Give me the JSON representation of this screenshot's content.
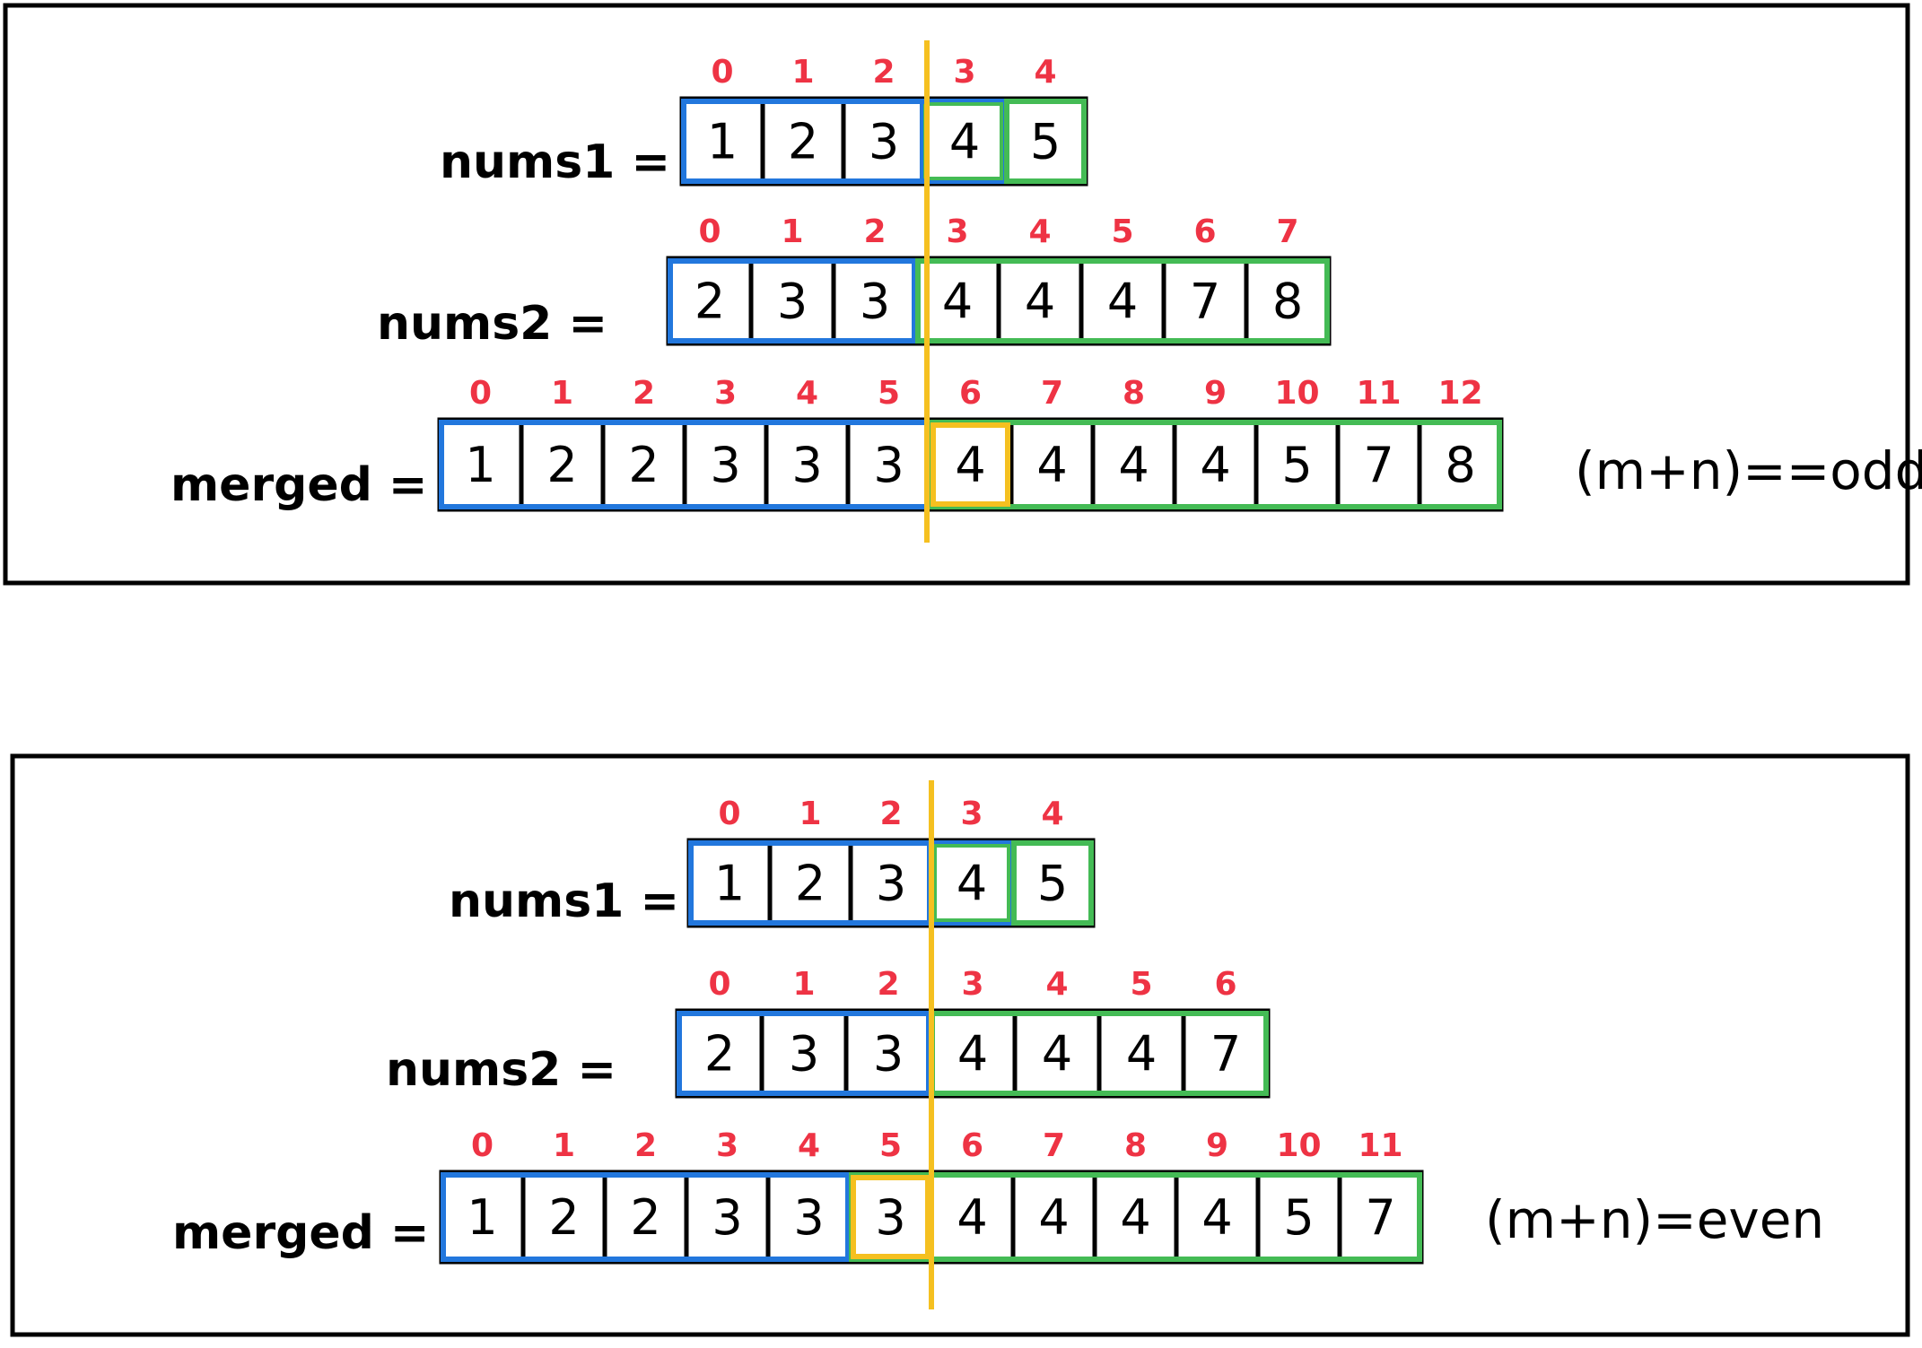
{
  "colors": {
    "index": "#ee3344",
    "left_partition": "#2277dd",
    "right_partition": "#44bb55",
    "median_cell": "#f5c020",
    "divider": "#f5c020",
    "ink": "#000000"
  },
  "panels": [
    {
      "id": "odd",
      "note": "(m+n)==odd",
      "arrays": [
        {
          "key": "nums1",
          "label": "nums1 =",
          "values": [
            "1",
            "2",
            "3",
            "4",
            "5"
          ],
          "indices": [
            "0",
            "1",
            "2",
            "3",
            "4"
          ],
          "left_count": 3,
          "median_cells": []
        },
        {
          "key": "nums2",
          "label": "nums2  =",
          "values": [
            "2",
            "3",
            "3",
            "4",
            "4",
            "4",
            "7",
            "8"
          ],
          "indices": [
            "0",
            "1",
            "2",
            "3",
            "4",
            "5",
            "6",
            "7"
          ],
          "left_count": 3,
          "median_cells": []
        },
        {
          "key": "merged",
          "label": "merged =",
          "values": [
            "1",
            "2",
            "2",
            "3",
            "3",
            "3",
            "4",
            "4",
            "4",
            "4",
            "5",
            "7",
            "8"
          ],
          "indices": [
            "0",
            "1",
            "2",
            "3",
            "4",
            "5",
            "6",
            "7",
            "8",
            "9",
            "10",
            "11",
            "12"
          ],
          "left_count": 6,
          "median_cells": [
            6
          ]
        }
      ]
    },
    {
      "id": "even",
      "note": "(m+n)=even",
      "arrays": [
        {
          "key": "nums1",
          "label": "nums1 =",
          "values": [
            "1",
            "2",
            "3",
            "4",
            "5"
          ],
          "indices": [
            "0",
            "1",
            "2",
            "3",
            "4"
          ],
          "left_count": 3,
          "median_cells": []
        },
        {
          "key": "nums2",
          "label": "nums2  =",
          "values": [
            "2",
            "3",
            "3",
            "4",
            "4",
            "4",
            "7"
          ],
          "indices": [
            "0",
            "1",
            "2",
            "3",
            "4",
            "5",
            "6"
          ],
          "left_count": 3,
          "median_cells": []
        },
        {
          "key": "merged",
          "label": "merged =",
          "values": [
            "1",
            "2",
            "2",
            "3",
            "3",
            "3",
            "4",
            "4",
            "4",
            "4",
            "5",
            "7"
          ],
          "indices": [
            "0",
            "1",
            "2",
            "3",
            "4",
            "5",
            "6",
            "7",
            "8",
            "9",
            "10",
            "11"
          ],
          "left_count": 5,
          "median_cells": [
            5
          ]
        }
      ]
    }
  ]
}
